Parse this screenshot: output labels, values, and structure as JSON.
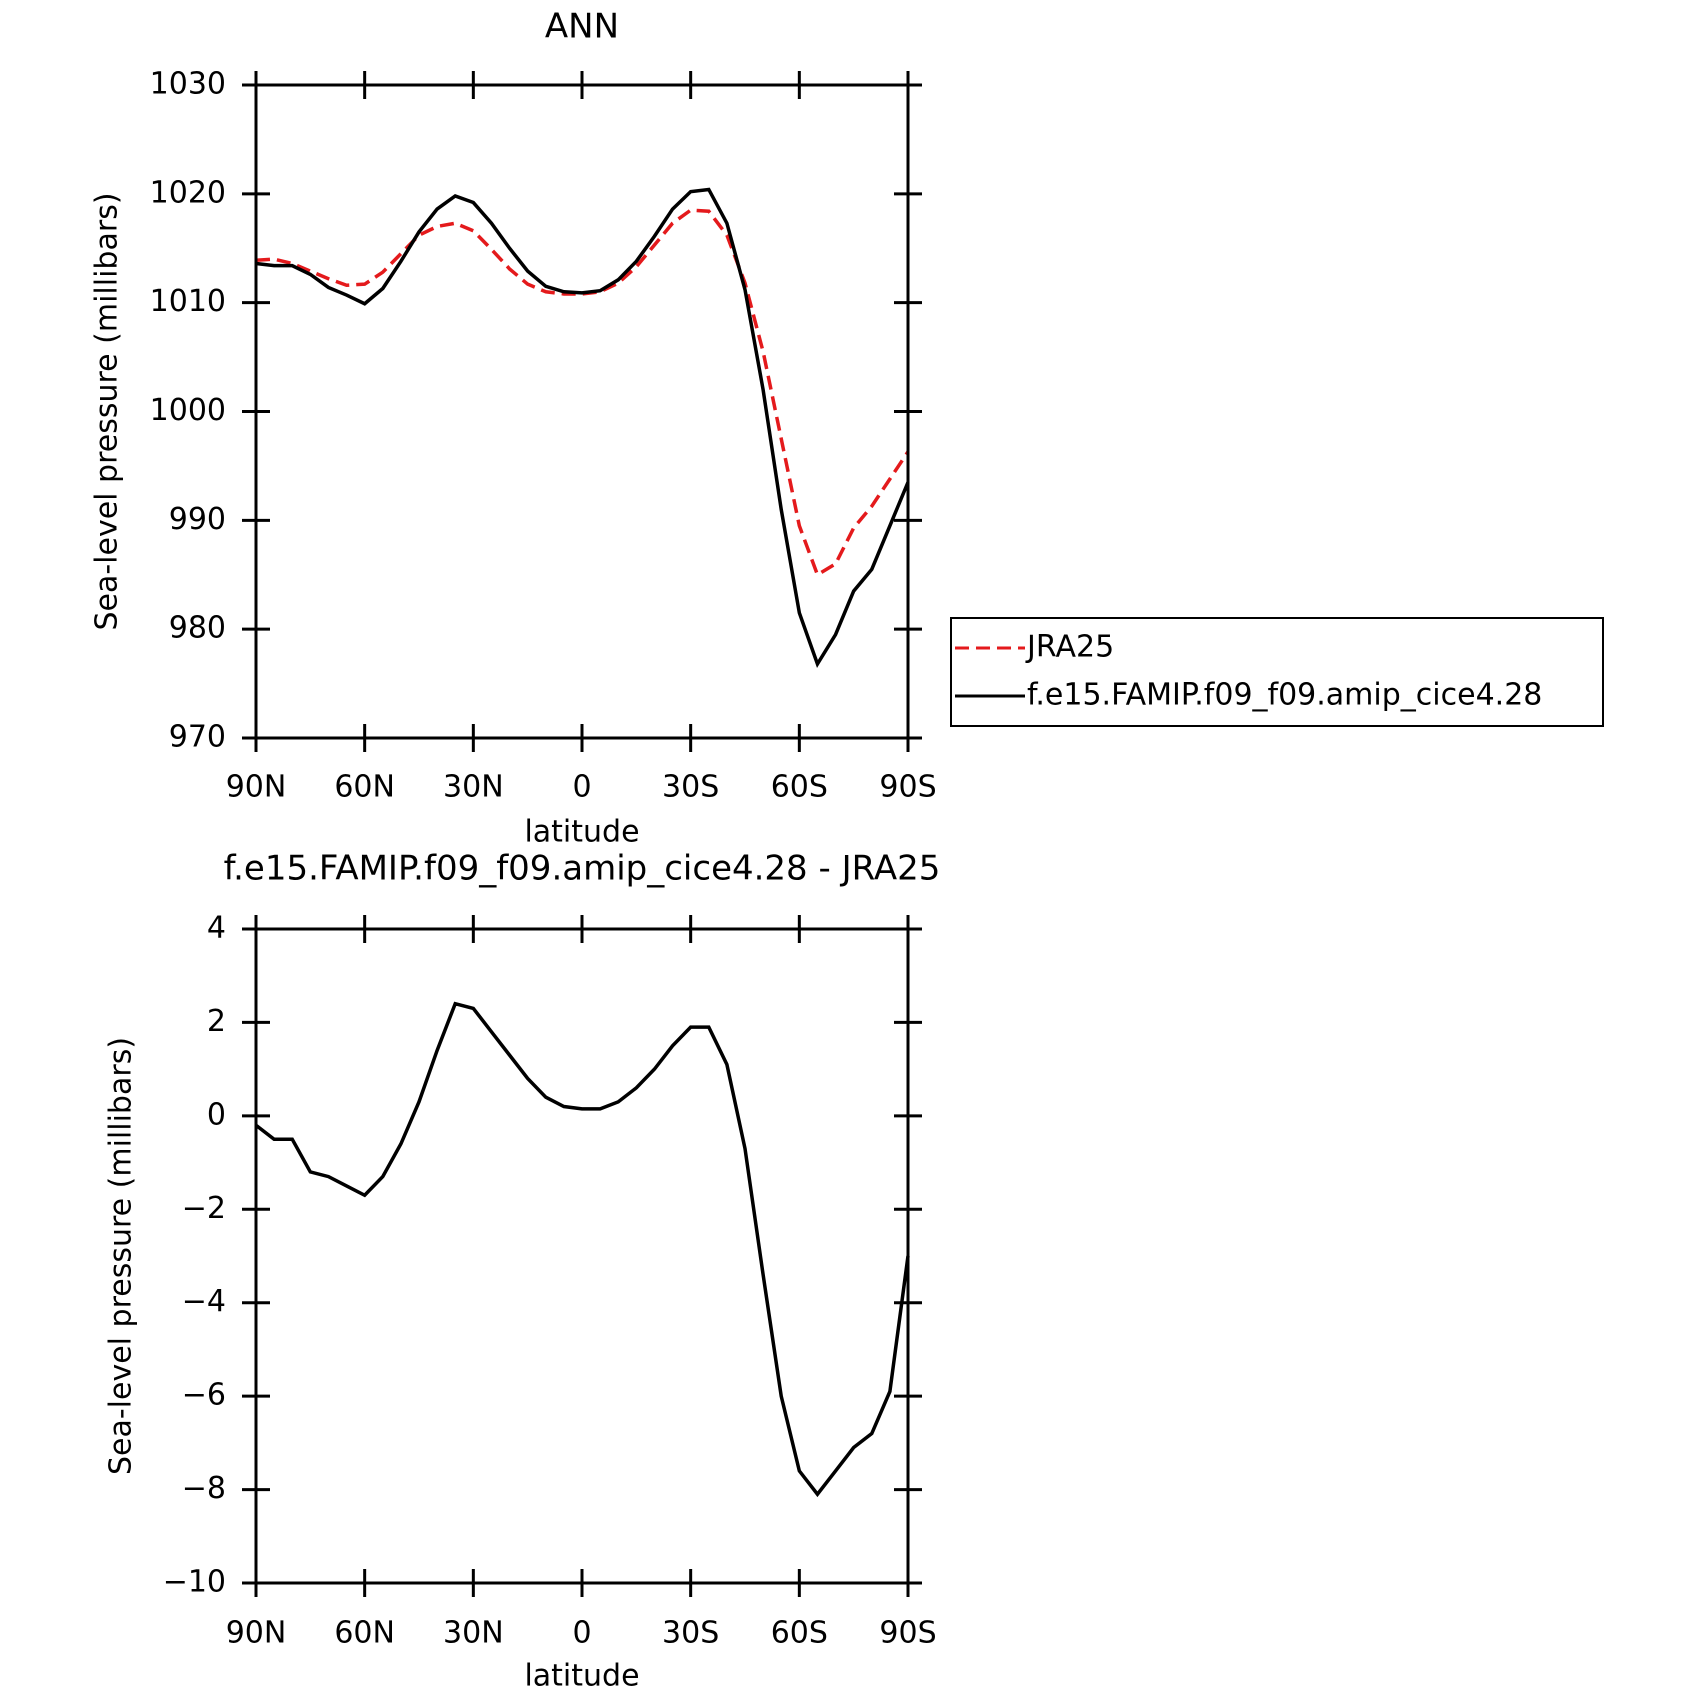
{
  "chart_data": [
    {
      "type": "line",
      "title": "ANN",
      "xlabel": "latitude",
      "ylabel": "Sea-level pressure (millibars)",
      "x": [
        90,
        85,
        80,
        75,
        70,
        65,
        60,
        55,
        50,
        45,
        40,
        35,
        30,
        25,
        20,
        15,
        10,
        5,
        0,
        -5,
        -10,
        -15,
        -20,
        -25,
        -30,
        -35,
        -40,
        -45,
        -50,
        -55,
        -60,
        -65,
        -70,
        -75,
        -80,
        -85,
        -90
      ],
      "series": [
        {
          "name": "JRA25",
          "color": "#e41a1c",
          "linestyle": "dashed",
          "values": [
            1013.9,
            1014.0,
            1013.6,
            1012.9,
            1012.2,
            1011.6,
            1011.7,
            1012.8,
            1014.5,
            1016.2,
            1017.0,
            1017.3,
            1016.6,
            1014.9,
            1013.1,
            1011.7,
            1011.0,
            1010.8,
            1010.8,
            1011.0,
            1011.8,
            1013.3,
            1015.3,
            1017.3,
            1018.5,
            1018.4,
            1016.2,
            1011.8,
            1005.5,
            997.5,
            989.5,
            985.0,
            986.0,
            989.3,
            991.3,
            993.8,
            996.3
          ]
        },
        {
          "name": "f.e15.FAMIP.f09_f09.amip_cice4.28",
          "color": "#000000",
          "linestyle": "solid",
          "values": [
            1013.6,
            1013.4,
            1013.4,
            1012.6,
            1011.4,
            1010.7,
            1009.9,
            1011.3,
            1013.8,
            1016.5,
            1018.6,
            1019.8,
            1019.2,
            1017.3,
            1015.0,
            1012.9,
            1011.5,
            1011.0,
            1010.9,
            1011.1,
            1012.1,
            1013.8,
            1016.1,
            1018.6,
            1020.2,
            1020.4,
            1017.3,
            1011.2,
            1002.0,
            991.0,
            981.5,
            976.8,
            979.5,
            983.5,
            985.5,
            989.5,
            993.5
          ]
        }
      ],
      "xlim": [
        90,
        -90
      ],
      "xticks": [
        {
          "value": 90,
          "label": "90N"
        },
        {
          "value": 60,
          "label": "60N"
        },
        {
          "value": 30,
          "label": "30N"
        },
        0,
        {
          "value": -30,
          "label": "30S"
        },
        {
          "value": -60,
          "label": "60S"
        },
        {
          "value": -90,
          "label": "90S"
        }
      ],
      "ylim": [
        970,
        1030
      ],
      "yticks": [
        970,
        980,
        990,
        1000,
        1010,
        1020,
        1030
      ],
      "legend": "outside-right"
    },
    {
      "type": "line",
      "title": "f.e15.FAMIP.f09_f09.amip_cice4.28 - JRA25",
      "xlabel": "latitude",
      "ylabel": "Sea-level pressure (millibars)",
      "x": [
        90,
        85,
        80,
        75,
        70,
        65,
        60,
        55,
        50,
        45,
        40,
        35,
        30,
        25,
        20,
        15,
        10,
        5,
        0,
        -5,
        -10,
        -15,
        -20,
        -25,
        -30,
        -35,
        -40,
        -45,
        -50,
        -55,
        -60,
        -65,
        -70,
        -75,
        -80,
        -85,
        -90
      ],
      "series": [
        {
          "color": "#000000",
          "linestyle": "solid",
          "values": [
            -0.2,
            -0.5,
            -0.5,
            -1.2,
            -1.3,
            -1.5,
            -1.7,
            -1.3,
            -0.6,
            0.3,
            1.4,
            2.4,
            2.3,
            1.8,
            1.3,
            0.8,
            0.4,
            0.2,
            0.15,
            0.15,
            0.3,
            0.6,
            1.0,
            1.5,
            1.9,
            1.9,
            1.1,
            -0.7,
            -3.4,
            -6.0,
            -7.6,
            -8.1,
            -7.6,
            -7.1,
            -6.8,
            -5.9,
            -3.0
          ]
        }
      ],
      "xlim": [
        90,
        -90
      ],
      "xticks": [
        {
          "value": 90,
          "label": "90N"
        },
        {
          "value": 60,
          "label": "60N"
        },
        {
          "value": 30,
          "label": "30N"
        },
        0,
        {
          "value": -30,
          "label": "30S"
        },
        {
          "value": -60,
          "label": "60S"
        },
        {
          "value": -90,
          "label": "90S"
        }
      ],
      "ylim": [
        -10,
        4
      ],
      "yticks": [
        {
          "value": -10,
          "label": "−10"
        },
        {
          "value": -8,
          "label": "−8"
        },
        {
          "value": -6,
          "label": "−6"
        },
        {
          "value": -4,
          "label": "−4"
        },
        {
          "value": -2,
          "label": "−2"
        },
        0,
        2,
        4
      ]
    }
  ]
}
